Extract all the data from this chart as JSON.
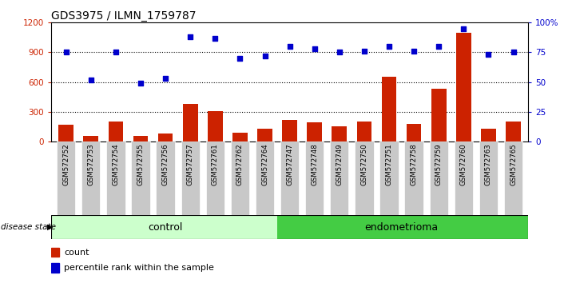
{
  "title": "GDS3975 / ILMN_1759787",
  "samples": [
    "GSM572752",
    "GSM572753",
    "GSM572754",
    "GSM572755",
    "GSM572756",
    "GSM572757",
    "GSM572761",
    "GSM572762",
    "GSM572764",
    "GSM572747",
    "GSM572748",
    "GSM572749",
    "GSM572750",
    "GSM572751",
    "GSM572758",
    "GSM572759",
    "GSM572760",
    "GSM572763",
    "GSM572765"
  ],
  "counts": [
    170,
    60,
    200,
    60,
    80,
    380,
    310,
    90,
    130,
    220,
    190,
    155,
    200,
    650,
    175,
    530,
    1100,
    130,
    200
  ],
  "percentile": [
    75,
    52,
    75,
    49,
    53,
    88,
    87,
    70,
    72,
    80,
    78,
    75,
    76,
    80,
    76,
    80,
    95,
    73,
    75
  ],
  "control_count": 9,
  "endometrioma_count": 10,
  "ylim_left": [
    0,
    1200
  ],
  "ylim_right": [
    0,
    100
  ],
  "yticks_left": [
    0,
    300,
    600,
    900,
    1200
  ],
  "yticks_right": [
    0,
    25,
    50,
    75,
    100
  ],
  "ytick_labels_left": [
    "0",
    "300",
    "600",
    "900",
    "1200"
  ],
  "ytick_labels_right": [
    "0",
    "25",
    "50",
    "75",
    "100%"
  ],
  "bar_color": "#cc2200",
  "dot_color": "#0000cc",
  "control_bg": "#ccffcc",
  "endometrioma_bg": "#44cc44",
  "xticklabel_bg": "#c8c8c8",
  "title_fontsize": 10,
  "disease_state_label": "disease state",
  "group1_label": "control",
  "group2_label": "endometrioma",
  "legend_count_label": "count",
  "legend_percentile_label": "percentile rank within the sample",
  "grid_color": "black",
  "grid_style": ":",
  "grid_linewidth": 0.8,
  "gridlines": [
    300,
    600,
    900
  ]
}
